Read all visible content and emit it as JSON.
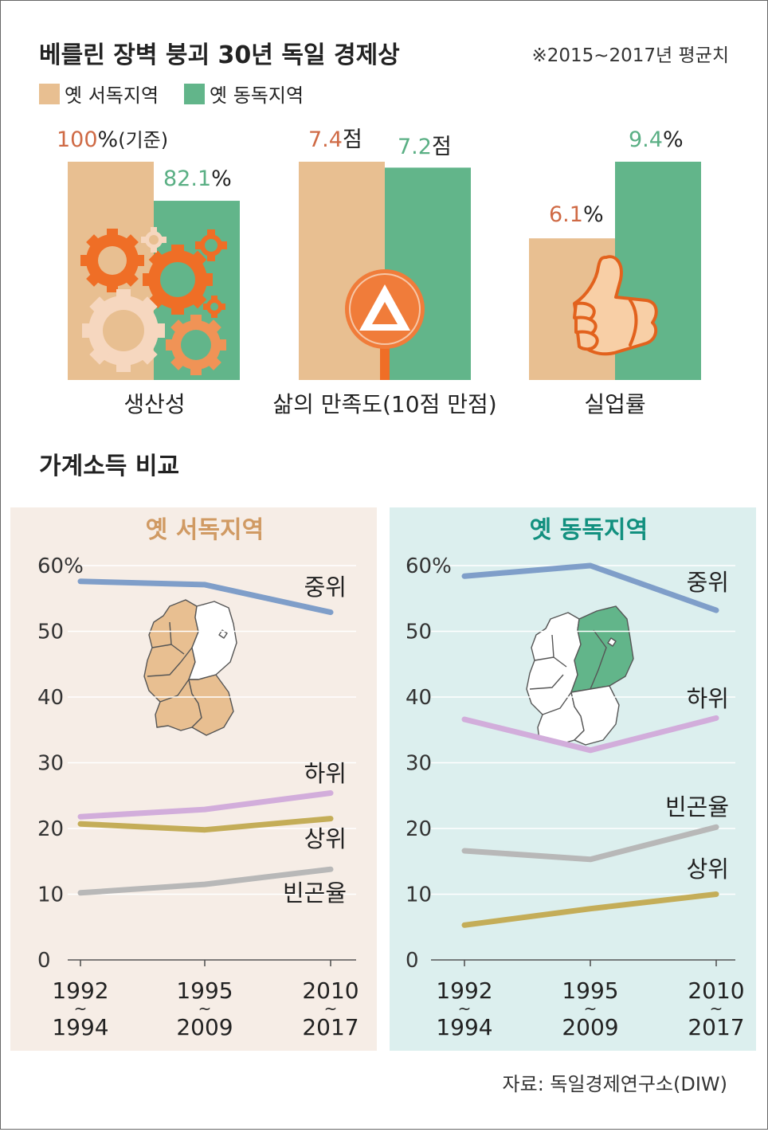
{
  "header": {
    "title": "베를린 장벽 붕괴 30년 독일 경제상",
    "note": "※2015~2017년 평균치",
    "legend": [
      {
        "label": "옛 서독지역",
        "color": "#e8bf91"
      },
      {
        "label": "옛 동독지역",
        "color": "#62b58a"
      }
    ]
  },
  "colors": {
    "west": "#e8bf91",
    "east": "#62b58a",
    "west_text": "#cf6a45",
    "east_text": "#5aaf84",
    "west_panel_bg": "#f6ede6",
    "east_panel_bg": "#dcefee",
    "west_panel_title": "#d09a63",
    "east_panel_title": "#12907f",
    "gear_orange": "#ef6e26",
    "gear_light": "#f6d7bf",
    "sign_orange": "#f07c3a",
    "median": "#7f9ec9",
    "lower": "#d2addb",
    "upper": "#c4ad58",
    "poverty": "#b8b8b8"
  },
  "icons": [
    "gear-icon",
    "sign-icon",
    "thumbs-up-icon",
    "germany-map-icon"
  ],
  "section2_title": "가계소득 비교",
  "source": "자료: 독일경제연구소(DIW)",
  "chart_data": [
    {
      "type": "bar",
      "title": "베를린 장벽 붕괴 30년 독일 경제상",
      "subtitle": "※2015~2017년 평균치",
      "categories": [
        "생산성",
        "삶의 만족도(10점 만점)",
        "실업률"
      ],
      "series": [
        {
          "name": "옛 서독지역",
          "values": [
            100,
            7.4,
            6.1
          ],
          "labels": [
            "100",
            "7.4",
            "6.1"
          ]
        },
        {
          "name": "옛 동독지역",
          "values": [
            82.1,
            7.2,
            9.4
          ],
          "labels": [
            "82.1",
            "7.2",
            "9.4"
          ]
        }
      ],
      "units": [
        "%",
        "점",
        "%"
      ],
      "west_suffix": [
        "(기준)",
        "",
        ""
      ],
      "ylims": [
        [
          0,
          100
        ],
        [
          0,
          7.4
        ],
        [
          0,
          9.4
        ]
      ],
      "legend": "top-left"
    },
    {
      "type": "line",
      "title": "가계소득 비교",
      "subtitle": "옛 서독지역",
      "x": [
        [
          "1992",
          "1994"
        ],
        [
          "1995",
          "2009"
        ],
        [
          "2010",
          "2017"
        ]
      ],
      "x_separator": "~",
      "y_ticks": [
        "0",
        "10",
        "20",
        "30",
        "40",
        "50",
        "60"
      ],
      "y_unit": "%",
      "ylim": [
        0,
        60
      ],
      "grid": true,
      "series": [
        {
          "name": "중위",
          "values": [
            57.6,
            57.1,
            52.9
          ]
        },
        {
          "name": "하위",
          "values": [
            21.8,
            22.9,
            25.4
          ]
        },
        {
          "name": "상위",
          "values": [
            20.7,
            19.8,
            21.5
          ]
        },
        {
          "name": "빈곤율",
          "values": [
            10.2,
            11.5,
            13.8
          ]
        }
      ]
    },
    {
      "type": "line",
      "title": "가계소득 비교",
      "subtitle": "옛 동독지역",
      "x": [
        [
          "1992",
          "1994"
        ],
        [
          "1995",
          "2009"
        ],
        [
          "2010",
          "2017"
        ]
      ],
      "x_separator": "~",
      "y_ticks": [
        "0",
        "10",
        "20",
        "30",
        "40",
        "50",
        "60"
      ],
      "y_unit": "%",
      "ylim": [
        0,
        60
      ],
      "grid": true,
      "series": [
        {
          "name": "중위",
          "values": [
            58.4,
            60.0,
            53.2
          ]
        },
        {
          "name": "하위",
          "values": [
            36.6,
            31.9,
            36.8
          ]
        },
        {
          "name": "빈곤율",
          "values": [
            16.6,
            15.3,
            20.2
          ]
        },
        {
          "name": "상위",
          "values": [
            5.3,
            7.8,
            10.0
          ]
        }
      ]
    }
  ]
}
